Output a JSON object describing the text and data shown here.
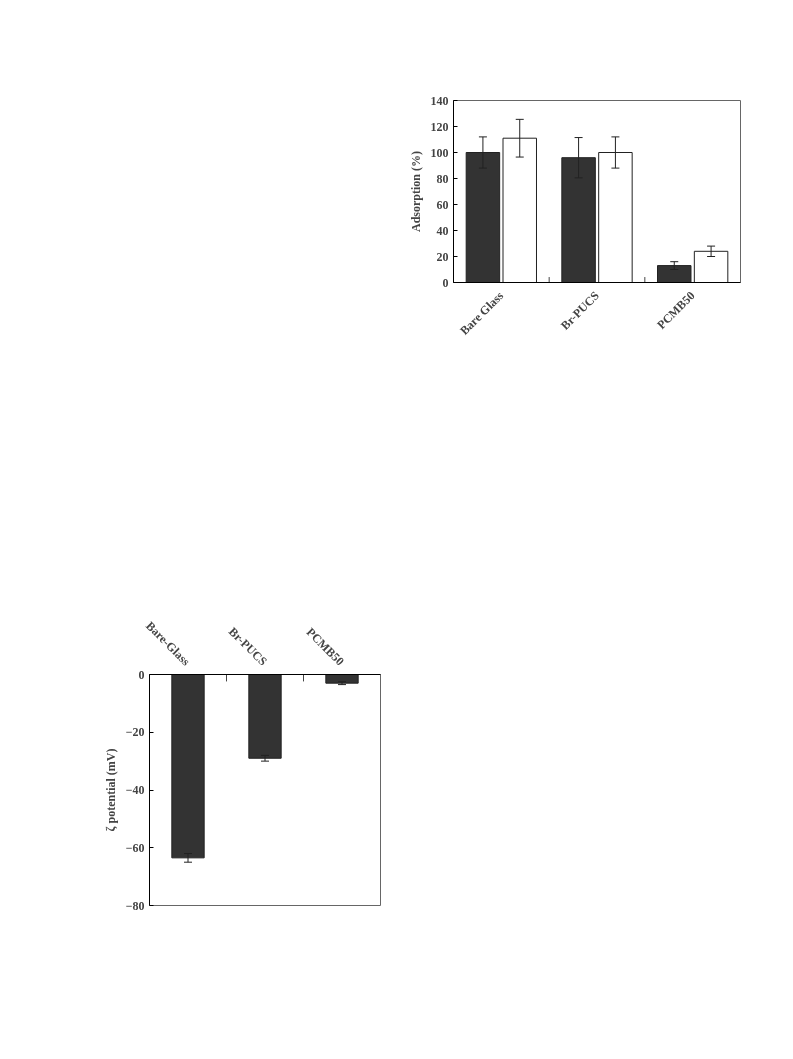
{
  "chart_data": [
    {
      "type": "bar",
      "ylabel": "Adsorption (%)",
      "categories": [
        "Bare Glass",
        "Br-PUCS",
        "PCMB50"
      ],
      "series": [
        {
          "color": "#333333",
          "values": [
            100,
            96,
            13
          ],
          "errors": [
            12,
            15.5,
            3
          ]
        },
        {
          "color": "#ffffff",
          "values": [
            111,
            100,
            24
          ],
          "errors": [
            14.5,
            12,
            4
          ]
        }
      ],
      "ylim": [
        0,
        140
      ],
      "yticks": [
        0,
        20,
        40,
        60,
        80,
        100,
        120,
        140
      ],
      "grid": false
    },
    {
      "type": "bar",
      "ylabel": "ζ potential (mV)",
      "categories": [
        "Bare-Glass",
        "Br-PUCS",
        "PCMB50"
      ],
      "series": [
        {
          "color": "#333333",
          "values": [
            -63.5,
            -29,
            -3
          ],
          "errors": [
            1.5,
            1,
            0.5
          ]
        }
      ],
      "ylim": [
        -80,
        0
      ],
      "yticks": [
        0,
        -20,
        -40,
        -60,
        -80
      ],
      "grid": false
    }
  ]
}
